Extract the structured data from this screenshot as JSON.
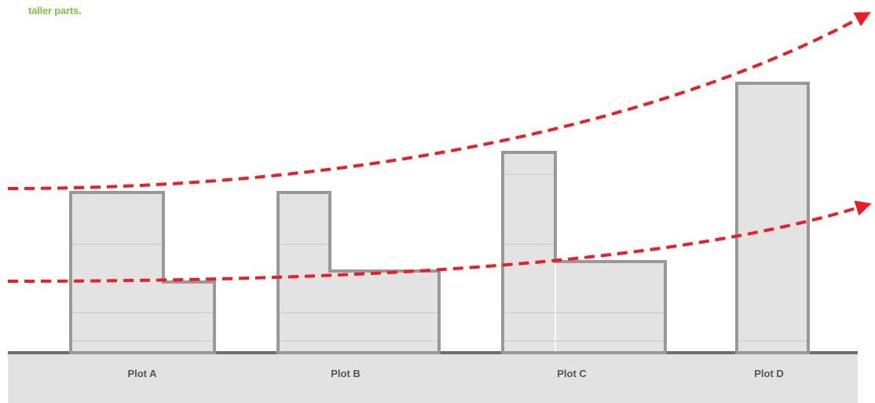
{
  "caption": "taller parts.",
  "plots": [
    {
      "label": "Plot A"
    },
    {
      "label": "Plot B"
    },
    {
      "label": "Plot C"
    },
    {
      "label": "Plot D"
    }
  ],
  "colors": {
    "building_fill": "#e3e3e3",
    "building_stroke": "#999999",
    "floor_line": "#cfcfcf",
    "ground_fill": "#e2e2e2",
    "ground_line": "#6e6e6e",
    "arrow": "#ee1c25",
    "caption": "#7dc242"
  }
}
